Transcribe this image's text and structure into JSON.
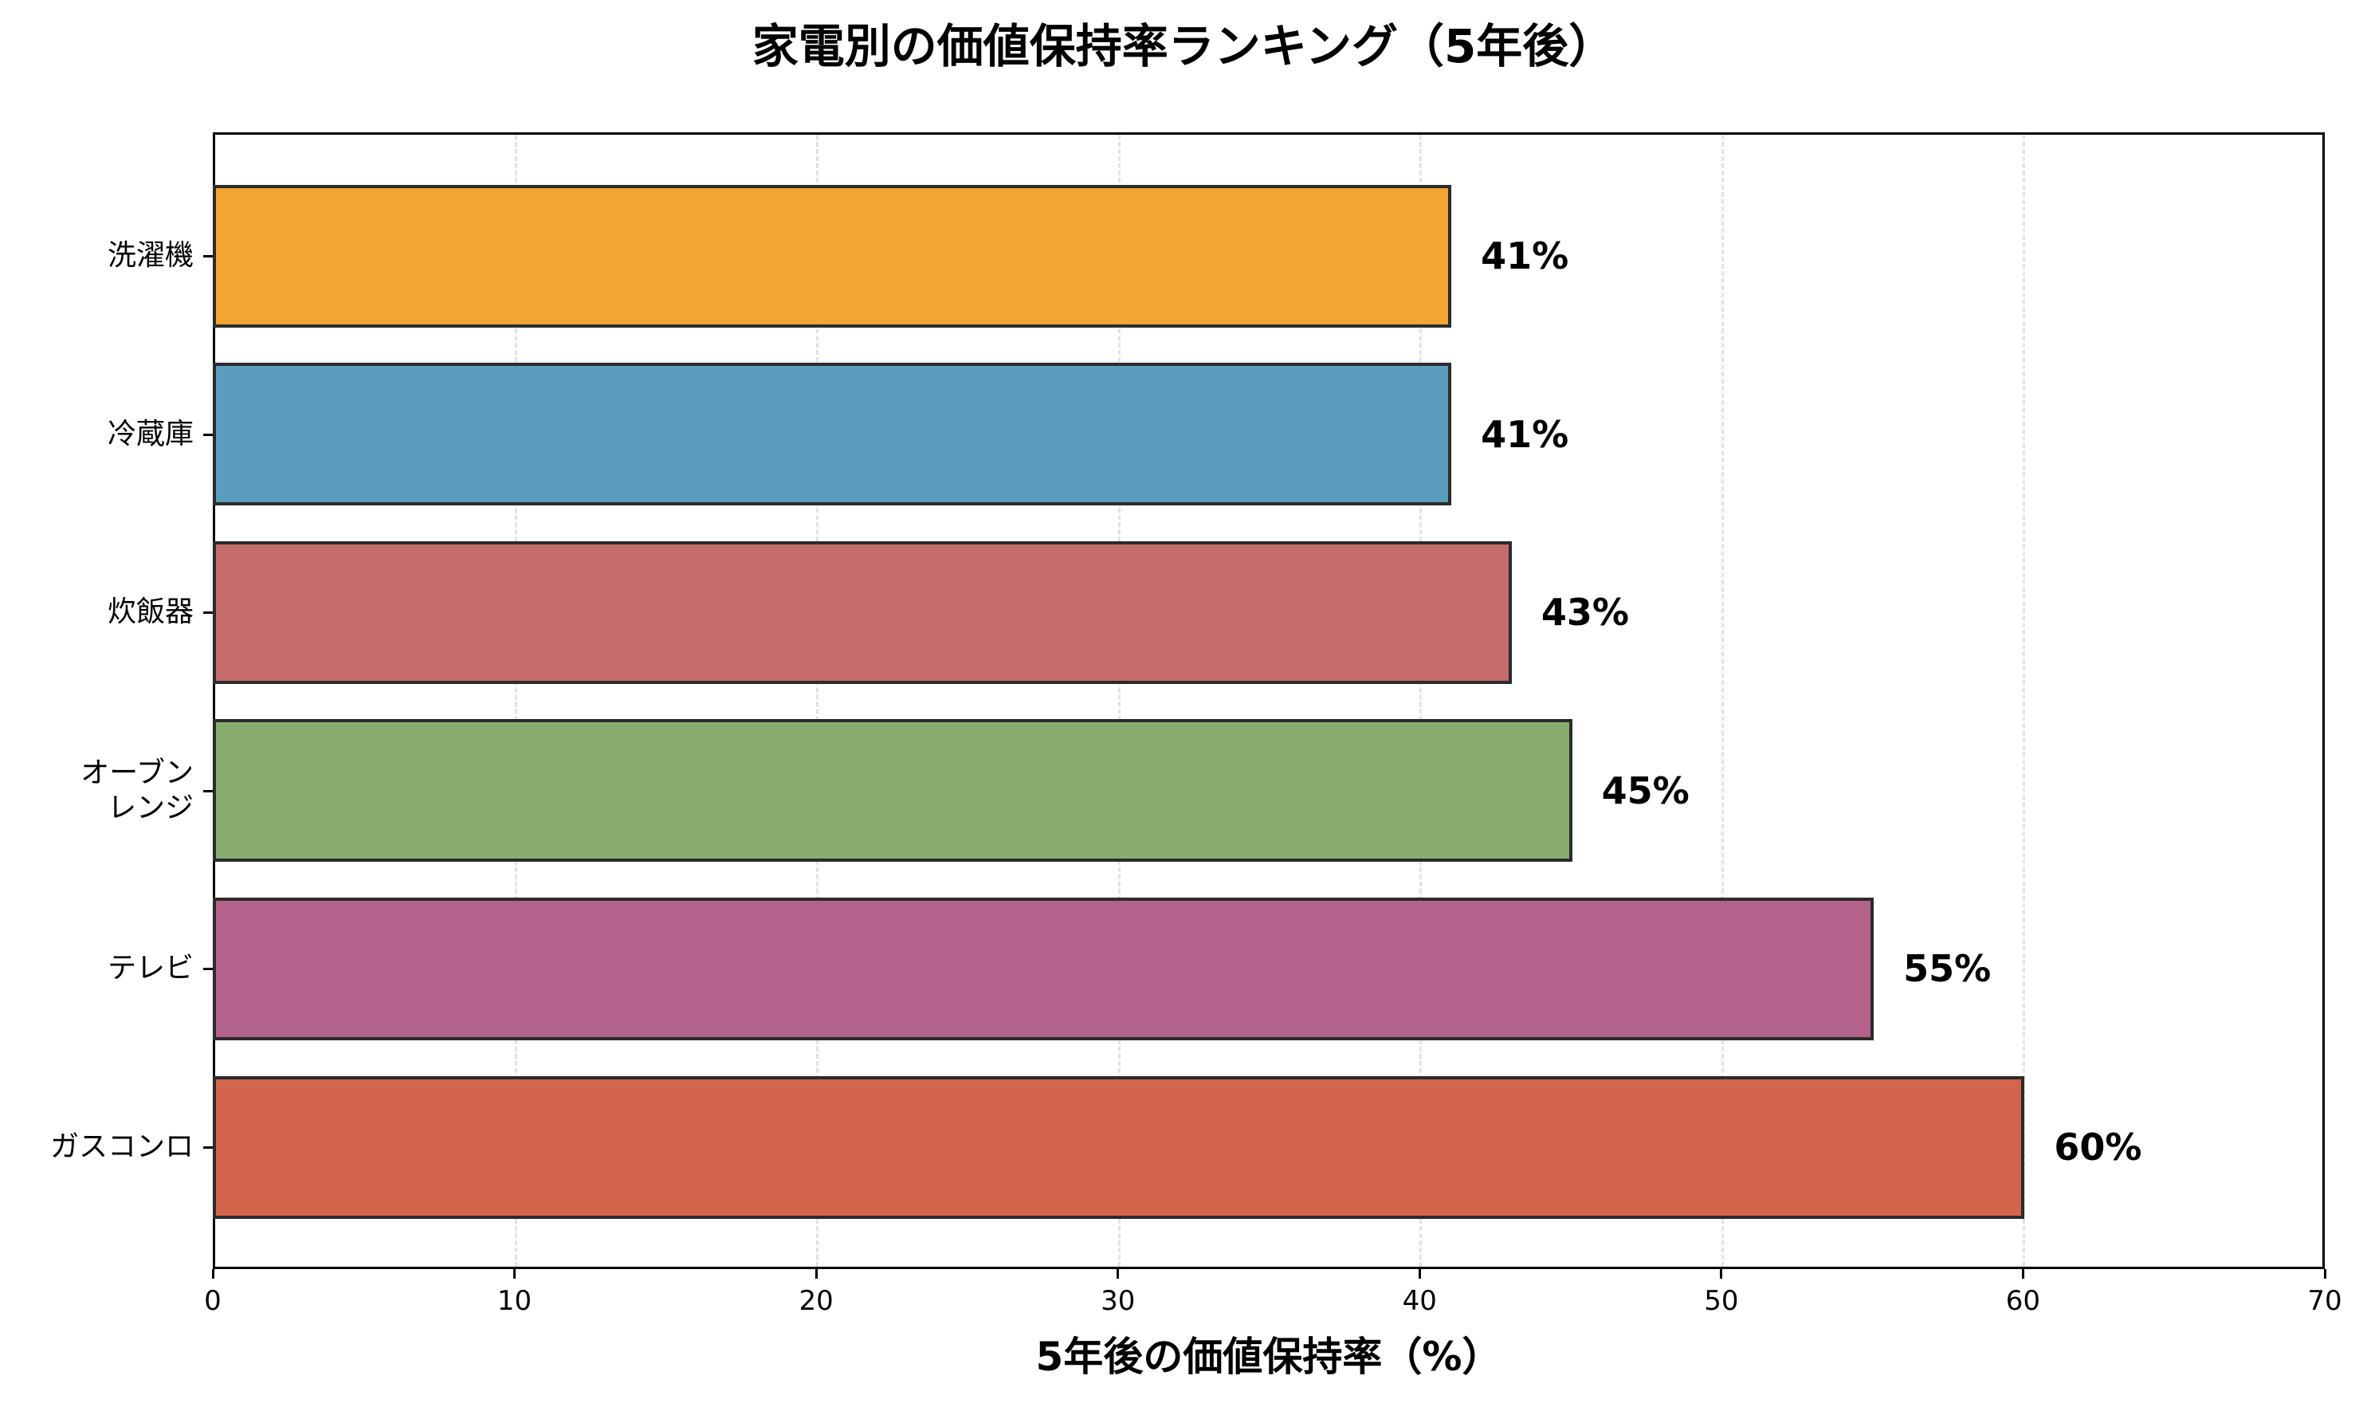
{
  "title": "家電別の価値保持率ランキング（5年後）",
  "xlabel": "5年後の価値保持率（%）",
  "chart_data": {
    "type": "bar",
    "orientation": "horizontal",
    "title": "家電別の価値保持率ランキング（5年後）",
    "xlabel": "5年後の価値保持率（%）",
    "ylabel": "",
    "categories": [
      "洗濯機",
      "冷蔵庫",
      "炊飯器",
      "オーブンレンジ",
      "テレビ",
      "ガスコンロ"
    ],
    "category_display": [
      "洗濯機",
      "冷蔵庫",
      "炊飯器",
      "オーブン\nレンジ",
      "テレビ",
      "ガスコンロ"
    ],
    "values": [
      41,
      41,
      43,
      45,
      55,
      60
    ],
    "value_labels": [
      "41%",
      "41%",
      "43%",
      "45%",
      "55%",
      "60%"
    ],
    "colors": [
      "#F0A534",
      "#5A9DBD",
      "#C66B6B",
      "#88AD6F",
      "#B3628B",
      "#D3654D"
    ],
    "edge_color": "#2B2B2B",
    "xlim": [
      0,
      70
    ],
    "xticks": [
      0,
      10,
      20,
      30,
      40,
      50,
      60,
      70
    ],
    "xtick_labels": [
      "0",
      "10",
      "20",
      "30",
      "40",
      "50",
      "60",
      "70"
    ],
    "grid": {
      "axis": "x",
      "style": "dashed",
      "color": "#E5E5E5"
    },
    "legend": null
  }
}
